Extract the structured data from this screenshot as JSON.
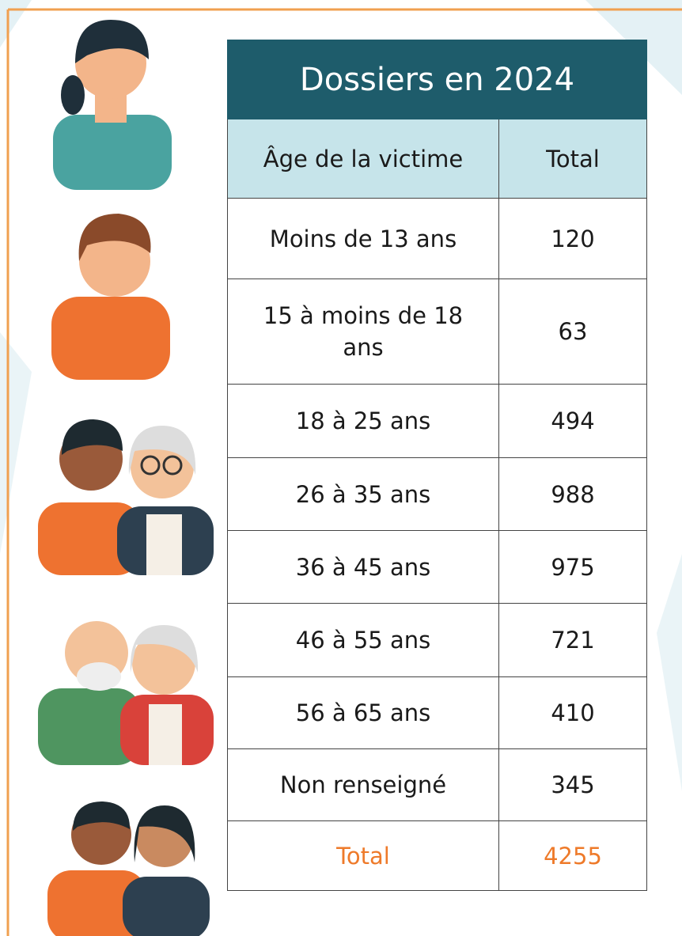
{
  "title": "Dossiers en 2024",
  "header": [
    "Âge de la victime",
    "Total"
  ],
  "rows": [
    [
      "Moins de 13 ans",
      120
    ],
    [
      "15 à moins de 18 ans",
      63
    ],
    [
      "18 à 25 ans",
      494
    ],
    [
      "26 à 35 ans",
      988
    ],
    [
      "36 à 45 ans",
      975
    ],
    [
      "46 à 55 ans",
      721
    ],
    [
      "56 à 65 ans",
      410
    ],
    [
      "Non renseigné",
      345
    ]
  ],
  "total": [
    "Total",
    4255
  ]
}
